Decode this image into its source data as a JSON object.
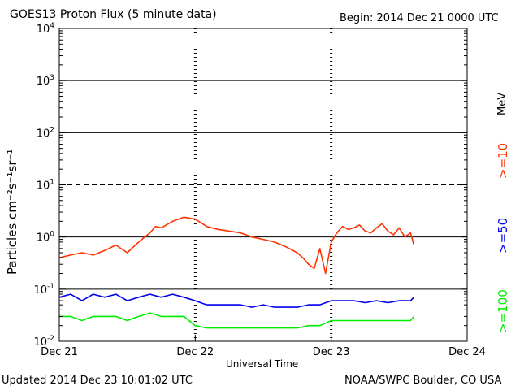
{
  "header": {
    "title": "GOES13 Proton Flux (5 minute data)",
    "begin": "Begin: 2014 Dec 21 0000 UTC"
  },
  "footer": {
    "updated": "Updated 2014 Dec 23 10:01:02 UTC",
    "credit": "NOAA/SWPC Boulder, CO USA"
  },
  "legend": {
    "unit": "MeV",
    "ge10": ">=10",
    "ge50": ">=50",
    "ge100": ">=100"
  },
  "chart_data": {
    "type": "line",
    "title": "GOES13 Proton Flux (5 minute data)",
    "xlabel": "Universal Time",
    "ylabel": "Particles cm⁻²s⁻¹sr⁻¹",
    "yscale": "log",
    "ylim": [
      0.01,
      10000
    ],
    "xlim_hours": [
      0,
      72
    ],
    "x_ticks": [
      "Dec 21",
      "Dec 22",
      "Dec 23",
      "Dec 24"
    ],
    "y_ticks": [
      {
        "base": "10",
        "exp": "-2"
      },
      {
        "base": "10",
        "exp": "-1"
      },
      {
        "base": "10",
        "exp": "0"
      },
      {
        "base": "10",
        "exp": "1"
      },
      {
        "base": "10",
        "exp": "2"
      },
      {
        "base": "10",
        "exp": "3"
      },
      {
        "base": "10",
        "exp": "4"
      }
    ],
    "threshold_lines": [
      0.1,
      1,
      10,
      100,
      1000
    ],
    "dashed_threshold": 10,
    "grid": true,
    "series": [
      {
        "name": ">=10",
        "color": "#ff3300",
        "x": [
          0,
          2,
          4,
          6,
          8,
          10,
          12,
          14,
          16,
          17,
          18,
          20,
          22,
          24,
          26,
          28,
          30,
          32,
          34,
          36,
          38,
          40,
          42,
          43,
          44,
          45,
          46,
          47,
          48,
          49,
          50,
          51,
          52,
          53,
          54,
          55,
          56,
          57,
          58,
          59,
          60,
          61,
          62,
          62.6
        ],
        "y": [
          0.4,
          0.45,
          0.5,
          0.45,
          0.55,
          0.7,
          0.5,
          0.8,
          1.2,
          1.6,
          1.5,
          2.0,
          2.4,
          2.2,
          1.6,
          1.4,
          1.3,
          1.2,
          1.0,
          0.9,
          0.8,
          0.65,
          0.5,
          0.4,
          0.3,
          0.25,
          0.6,
          0.2,
          0.8,
          1.2,
          1.6,
          1.4,
          1.5,
          1.7,
          1.3,
          1.2,
          1.5,
          1.8,
          1.3,
          1.1,
          1.5,
          1.0,
          1.2,
          0.7
        ]
      },
      {
        "name": ">=50",
        "color": "#0000ee",
        "x": [
          0,
          2,
          4,
          6,
          8,
          10,
          12,
          14,
          16,
          18,
          20,
          22,
          24,
          26,
          28,
          30,
          32,
          34,
          36,
          38,
          40,
          42,
          44,
          46,
          48,
          50,
          52,
          54,
          56,
          58,
          60,
          62,
          62.6
        ],
        "y": [
          0.07,
          0.08,
          0.06,
          0.08,
          0.07,
          0.08,
          0.06,
          0.07,
          0.08,
          0.07,
          0.08,
          0.07,
          0.06,
          0.05,
          0.05,
          0.05,
          0.05,
          0.045,
          0.05,
          0.045,
          0.045,
          0.045,
          0.05,
          0.05,
          0.06,
          0.06,
          0.06,
          0.055,
          0.06,
          0.055,
          0.06,
          0.06,
          0.07
        ]
      },
      {
        "name": ">=100",
        "color": "#00ee00",
        "x": [
          0,
          2,
          4,
          6,
          8,
          10,
          12,
          14,
          16,
          18,
          20,
          22,
          24,
          26,
          28,
          30,
          32,
          34,
          36,
          38,
          40,
          42,
          44,
          46,
          48,
          50,
          52,
          54,
          56,
          58,
          60,
          62,
          62.6
        ],
        "y": [
          0.03,
          0.03,
          0.025,
          0.03,
          0.03,
          0.03,
          0.025,
          0.03,
          0.035,
          0.03,
          0.03,
          0.03,
          0.02,
          0.018,
          0.018,
          0.018,
          0.018,
          0.018,
          0.018,
          0.018,
          0.018,
          0.018,
          0.02,
          0.02,
          0.025,
          0.025,
          0.025,
          0.025,
          0.025,
          0.025,
          0.025,
          0.025,
          0.03
        ]
      }
    ]
  }
}
